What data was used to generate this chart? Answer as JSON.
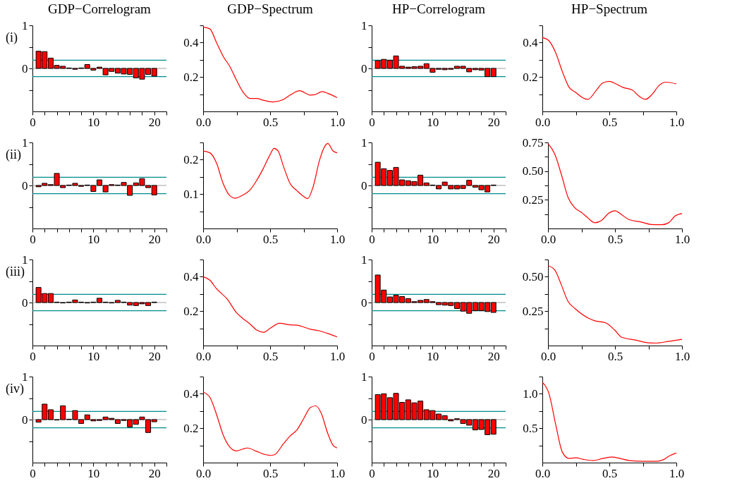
{
  "chart_data": [
    {
      "type": "bar",
      "title": "GDP−Correlogram",
      "annotations": [
        "(i)"
      ],
      "x": [
        1,
        2,
        3,
        4,
        5,
        6,
        7,
        8,
        9,
        10,
        11,
        12,
        13,
        14,
        15,
        16,
        17,
        18,
        19,
        20
      ],
      "values": [
        0.4,
        0.39,
        0.24,
        0.07,
        0.05,
        0.01,
        -0.02,
        0.01,
        0.09,
        -0.04,
        0.03,
        -0.15,
        -0.07,
        -0.11,
        -0.13,
        -0.14,
        -0.22,
        -0.25,
        -0.14,
        -0.18
      ],
      "color": "#ff0000",
      "xlim": [
        0,
        22
      ],
      "xticks": [
        0,
        {
          "value": 2,
          "label": null
        },
        {
          "value": 4,
          "label": null
        },
        {
          "value": 6,
          "label": null
        },
        {
          "value": 8,
          "label": null
        },
        10,
        {
          "value": 12,
          "label": null
        },
        {
          "value": 14,
          "label": null
        },
        {
          "value": 16,
          "label": null
        },
        {
          "value": 18,
          "label": null
        },
        20,
        {
          "value": 22,
          "label": null
        }
      ],
      "ylim": [
        -1,
        1
      ],
      "yticks": [
        {
          "value": -0.5,
          "label": null
        },
        0,
        {
          "value": 0.5,
          "label": null
        },
        1
      ],
      "ref_lines": [
        {
          "axis": "y",
          "value": 0,
          "color": "#a0a0a0"
        },
        {
          "axis": "y",
          "value": 0.19,
          "color": "#008b8b"
        },
        {
          "axis": "y",
          "value": -0.19,
          "color": "#008b8b"
        }
      ]
    },
    {
      "type": "line",
      "title": "GDP−Spectrum",
      "x": [
        0,
        0.05,
        0.1,
        0.15,
        0.2,
        0.25,
        0.3,
        0.35,
        0.4,
        0.45,
        0.52,
        0.6,
        0.65,
        0.72,
        0.8,
        0.83,
        0.89,
        0.93,
        1.0
      ],
      "values": [
        0.49,
        0.48,
        0.4,
        0.32,
        0.26,
        0.18,
        0.11,
        0.075,
        0.075,
        0.065,
        0.055,
        0.07,
        0.095,
        0.12,
        0.095,
        0.097,
        0.115,
        0.105,
        0.08
      ],
      "color": "#ff0000",
      "xlim": [
        0,
        1
      ],
      "xticks": [
        {
          "value": 0,
          "label": "0.0"
        },
        {
          "value": 0.25,
          "label": null
        },
        0.5,
        {
          "value": 0.75,
          "label": null
        },
        {
          "value": 1,
          "label": "1.0"
        }
      ],
      "ylim": [
        0,
        0.5
      ],
      "yticks": [
        {
          "value": 0.1,
          "label": null
        },
        0.2,
        {
          "value": 0.3,
          "label": null
        },
        0.4,
        {
          "value": 0.5,
          "label": null
        }
      ]
    },
    {
      "type": "bar",
      "title": "HP−Correlogram",
      "x": [
        1,
        2,
        3,
        4,
        5,
        6,
        7,
        8,
        9,
        10,
        11,
        12,
        13,
        14,
        15,
        16,
        17,
        18,
        19,
        20
      ],
      "values": [
        0.18,
        0.21,
        0.19,
        0.29,
        0.05,
        0.03,
        0.04,
        0.05,
        0.11,
        -0.09,
        -0.02,
        -0.03,
        -0.02,
        0.05,
        0.05,
        -0.08,
        -0.03,
        -0.04,
        -0.19,
        -0.19
      ],
      "color": "#ff0000",
      "xlim": [
        0,
        22
      ],
      "xticks": [
        0,
        {
          "value": 2,
          "label": null
        },
        {
          "value": 4,
          "label": null
        },
        {
          "value": 6,
          "label": null
        },
        {
          "value": 8,
          "label": null
        },
        10,
        {
          "value": 12,
          "label": null
        },
        {
          "value": 14,
          "label": null
        },
        {
          "value": 16,
          "label": null
        },
        {
          "value": 18,
          "label": null
        },
        20,
        {
          "value": 22,
          "label": null
        }
      ],
      "ylim": [
        -1,
        1
      ],
      "yticks": [
        {
          "value": -0.5,
          "label": null
        },
        0,
        {
          "value": 0.5,
          "label": null
        },
        1
      ],
      "ref_lines": [
        {
          "axis": "y",
          "value": 0,
          "color": "#a0a0a0"
        },
        {
          "axis": "y",
          "value": 0.19,
          "color": "#008b8b"
        },
        {
          "axis": "y",
          "value": -0.19,
          "color": "#008b8b"
        }
      ]
    },
    {
      "type": "line",
      "title": "HP−Spectrum",
      "x": [
        0,
        0.05,
        0.1,
        0.15,
        0.2,
        0.25,
        0.3,
        0.34,
        0.4,
        0.45,
        0.5,
        0.55,
        0.6,
        0.67,
        0.72,
        0.77,
        0.82,
        0.87,
        0.92,
        1.0
      ],
      "values": [
        0.43,
        0.41,
        0.34,
        0.23,
        0.14,
        0.11,
        0.08,
        0.07,
        0.12,
        0.165,
        0.175,
        0.16,
        0.14,
        0.125,
        0.09,
        0.07,
        0.1,
        0.15,
        0.17,
        0.16
      ],
      "color": "#ff0000",
      "xlim": [
        0,
        1
      ],
      "xticks": [
        {
          "value": 0,
          "label": "0.0"
        },
        {
          "value": 0.25,
          "label": null
        },
        0.5,
        {
          "value": 0.75,
          "label": null
        },
        {
          "value": 1,
          "label": "1.0"
        }
      ],
      "ylim": [
        0,
        0.5
      ],
      "yticks": [
        {
          "value": 0.1,
          "label": null
        },
        0.2,
        {
          "value": 0.3,
          "label": null
        },
        0.4,
        {
          "value": 0.5,
          "label": null
        }
      ]
    },
    {
      "type": "bar",
      "annotations": [
        "(ii)"
      ],
      "x": [
        1,
        2,
        3,
        4,
        5,
        6,
        7,
        8,
        9,
        10,
        11,
        12,
        13,
        14,
        15,
        16,
        17,
        18,
        19,
        20
      ],
      "values": [
        -0.03,
        0.05,
        0.02,
        0.28,
        -0.05,
        0.01,
        0.05,
        -0.02,
        0.01,
        -0.14,
        0.13,
        -0.15,
        0.02,
        0.01,
        0.07,
        -0.23,
        0.06,
        0.16,
        -0.05,
        -0.22
      ],
      "color": "#ff0000",
      "xlim": [
        0,
        22
      ],
      "xticks": [
        0,
        {
          "value": 2,
          "label": null
        },
        {
          "value": 4,
          "label": null
        },
        {
          "value": 6,
          "label": null
        },
        {
          "value": 8,
          "label": null
        },
        10,
        {
          "value": 12,
          "label": null
        },
        {
          "value": 14,
          "label": null
        },
        {
          "value": 16,
          "label": null
        },
        {
          "value": 18,
          "label": null
        },
        20,
        {
          "value": 22,
          "label": null
        }
      ],
      "ylim": [
        -1,
        1
      ],
      "yticks": [
        {
          "value": -0.5,
          "label": null
        },
        0,
        {
          "value": 0.5,
          "label": null
        },
        1
      ],
      "ref_lines": [
        {
          "axis": "y",
          "value": 0,
          "color": "#a0a0a0"
        },
        {
          "axis": "y",
          "value": 0.19,
          "color": "#008b8b"
        },
        {
          "axis": "y",
          "value": -0.19,
          "color": "#008b8b"
        }
      ]
    },
    {
      "type": "line",
      "x": [
        0,
        0.05,
        0.1,
        0.15,
        0.2,
        0.24,
        0.3,
        0.35,
        0.4,
        0.45,
        0.5,
        0.53,
        0.56,
        0.6,
        0.65,
        0.7,
        0.75,
        0.78,
        0.82,
        0.87,
        0.91,
        0.93,
        0.97,
        1.0
      ],
      "values": [
        0.225,
        0.22,
        0.19,
        0.13,
        0.095,
        0.088,
        0.098,
        0.112,
        0.14,
        0.175,
        0.215,
        0.233,
        0.225,
        0.18,
        0.13,
        0.11,
        0.093,
        0.087,
        0.12,
        0.2,
        0.24,
        0.247,
        0.225,
        0.22
      ],
      "color": "#ff0000",
      "xlim": [
        0,
        1
      ],
      "xticks": [
        {
          "value": 0,
          "label": "0.0"
        },
        {
          "value": 0.25,
          "label": null
        },
        0.5,
        {
          "value": 0.75,
          "label": null
        },
        {
          "value": 1,
          "label": "1.0"
        }
      ],
      "ylim": [
        0,
        0.25
      ],
      "yticks": [
        {
          "value": 0.05,
          "label": null
        },
        0.1,
        {
          "value": 0.15,
          "label": null
        },
        0.2,
        {
          "value": 0.25,
          "label": null
        }
      ]
    },
    {
      "type": "bar",
      "x": [
        1,
        2,
        3,
        4,
        5,
        6,
        7,
        8,
        9,
        10,
        11,
        12,
        13,
        14,
        15,
        16,
        17,
        18,
        19,
        20
      ],
      "values": [
        0.54,
        0.39,
        0.35,
        0.42,
        0.13,
        0.11,
        0.09,
        0.24,
        0.06,
        0.01,
        -0.08,
        0.08,
        -0.08,
        -0.08,
        -0.07,
        0.12,
        -0.04,
        -0.1,
        -0.15,
        0.01
      ],
      "color": "#ff0000",
      "xlim": [
        0,
        22
      ],
      "xticks": [
        0,
        {
          "value": 2,
          "label": null
        },
        {
          "value": 4,
          "label": null
        },
        {
          "value": 6,
          "label": null
        },
        {
          "value": 8,
          "label": null
        },
        10,
        {
          "value": 12,
          "label": null
        },
        {
          "value": 14,
          "label": null
        },
        {
          "value": 16,
          "label": null
        },
        {
          "value": 18,
          "label": null
        },
        20,
        {
          "value": 22,
          "label": null
        }
      ],
      "ylim": [
        -1,
        1
      ],
      "yticks": [
        {
          "value": -0.5,
          "label": null
        },
        0,
        {
          "value": 0.5,
          "label": null
        },
        1
      ],
      "ref_lines": [
        {
          "axis": "y",
          "value": 0,
          "color": "#a0a0a0"
        },
        {
          "axis": "y",
          "value": 0.19,
          "color": "#008b8b"
        },
        {
          "axis": "y",
          "value": -0.19,
          "color": "#008b8b"
        }
      ]
    },
    {
      "type": "line",
      "x": [
        0,
        0.05,
        0.1,
        0.15,
        0.2,
        0.25,
        0.3,
        0.35,
        0.4,
        0.45,
        0.5,
        0.55,
        0.6,
        0.7,
        0.77,
        0.85,
        0.9,
        0.95,
        1.0
      ],
      "values": [
        0.74,
        0.65,
        0.47,
        0.27,
        0.18,
        0.14,
        0.09,
        0.05,
        0.07,
        0.13,
        0.155,
        0.12,
        0.08,
        0.055,
        0.035,
        0.033,
        0.05,
        0.11,
        0.13
      ],
      "color": "#ff0000",
      "xlim": [
        0,
        1
      ],
      "xticks": [
        {
          "value": 0,
          "label": "0.0"
        },
        {
          "value": 0.25,
          "label": null
        },
        0.5,
        {
          "value": 0.75,
          "label": null
        },
        {
          "value": 1,
          "label": "1.0"
        }
      ],
      "ylim": [
        0,
        0.75
      ],
      "yticks": [
        {
          "value": 0.125,
          "label": null
        },
        0.25,
        {
          "value": 0.375,
          "label": null
        },
        {
          "value": 0.5,
          "label": "0.50"
        },
        {
          "value": 0.625,
          "label": null
        },
        0.75
      ]
    },
    {
      "type": "bar",
      "annotations": [
        "(iii)"
      ],
      "x": [
        1,
        2,
        3,
        4,
        5,
        6,
        7,
        8,
        9,
        10,
        11,
        12,
        13,
        14,
        15,
        16,
        17,
        18,
        19,
        20
      ],
      "values": [
        0.35,
        0.21,
        0.21,
        0.01,
        -0.01,
        0.01,
        0.06,
        0.01,
        -0.01,
        0.01,
        0.1,
        0.01,
        -0.01,
        0.05,
        0.01,
        -0.06,
        -0.07,
        -0.03,
        -0.07,
        0.01
      ],
      "color": "#ff0000",
      "xlim": [
        0,
        22
      ],
      "xticks": [
        0,
        {
          "value": 2,
          "label": null
        },
        {
          "value": 4,
          "label": null
        },
        {
          "value": 6,
          "label": null
        },
        {
          "value": 8,
          "label": null
        },
        10,
        {
          "value": 12,
          "label": null
        },
        {
          "value": 14,
          "label": null
        },
        {
          "value": 16,
          "label": null
        },
        {
          "value": 18,
          "label": null
        },
        20,
        {
          "value": 22,
          "label": null
        }
      ],
      "ylim": [
        -1,
        1
      ],
      "yticks": [
        {
          "value": -0.5,
          "label": null
        },
        0,
        {
          "value": 0.5,
          "label": null
        },
        1
      ],
      "ref_lines": [
        {
          "axis": "y",
          "value": 0,
          "color": "#a0a0a0"
        },
        {
          "axis": "y",
          "value": 0.19,
          "color": "#008b8b"
        },
        {
          "axis": "y",
          "value": -0.19,
          "color": "#008b8b"
        }
      ]
    },
    {
      "type": "line",
      "x": [
        0,
        0.05,
        0.1,
        0.18,
        0.25,
        0.3,
        0.35,
        0.4,
        0.45,
        0.5,
        0.57,
        0.65,
        0.7,
        0.8,
        0.87,
        0.93,
        1.0
      ],
      "values": [
        0.4,
        0.38,
        0.33,
        0.27,
        0.19,
        0.155,
        0.125,
        0.09,
        0.077,
        0.1,
        0.13,
        0.12,
        0.118,
        0.095,
        0.085,
        0.07,
        0.05
      ],
      "color": "#ff0000",
      "xlim": [
        0,
        1
      ],
      "xticks": [
        {
          "value": 0,
          "label": "0.0"
        },
        {
          "value": 0.25,
          "label": null
        },
        0.5,
        {
          "value": 0.75,
          "label": null
        },
        {
          "value": 1,
          "label": "1.0"
        }
      ],
      "ylim": [
        0,
        0.5
      ],
      "yticks": [
        {
          "value": 0.1,
          "label": null
        },
        0.2,
        {
          "value": 0.3,
          "label": null
        },
        0.4,
        {
          "value": 0.5,
          "label": null
        }
      ]
    },
    {
      "type": "bar",
      "x": [
        1,
        2,
        3,
        4,
        5,
        6,
        7,
        8,
        9,
        10,
        11,
        12,
        13,
        14,
        15,
        16,
        17,
        18,
        19,
        20
      ],
      "values": [
        0.64,
        0.29,
        0.13,
        0.17,
        0.14,
        0.09,
        0.02,
        0.05,
        0.07,
        0.02,
        -0.05,
        -0.06,
        -0.07,
        -0.14,
        -0.2,
        -0.25,
        -0.19,
        -0.19,
        -0.21,
        -0.23
      ],
      "color": "#ff0000",
      "xlim": [
        0,
        22
      ],
      "xticks": [
        0,
        {
          "value": 2,
          "label": null
        },
        {
          "value": 4,
          "label": null
        },
        {
          "value": 6,
          "label": null
        },
        {
          "value": 8,
          "label": null
        },
        10,
        {
          "value": 12,
          "label": null
        },
        {
          "value": 14,
          "label": null
        },
        {
          "value": 16,
          "label": null
        },
        {
          "value": 18,
          "label": null
        },
        20,
        {
          "value": 22,
          "label": null
        }
      ],
      "ylim": [
        -1,
        1
      ],
      "yticks": [
        {
          "value": -0.5,
          "label": null
        },
        0,
        {
          "value": 0.5,
          "label": null
        },
        1
      ],
      "ref_lines": [
        {
          "axis": "y",
          "value": 0,
          "color": "#a0a0a0"
        },
        {
          "axis": "y",
          "value": 0.19,
          "color": "#008b8b"
        },
        {
          "axis": "y",
          "value": -0.19,
          "color": "#008b8b"
        }
      ]
    },
    {
      "type": "line",
      "x": [
        0,
        0.05,
        0.1,
        0.15,
        0.2,
        0.3,
        0.35,
        0.43,
        0.5,
        0.55,
        0.65,
        0.75,
        0.8,
        0.9,
        1.0
      ],
      "values": [
        0.58,
        0.55,
        0.44,
        0.32,
        0.27,
        0.2,
        0.18,
        0.165,
        0.11,
        0.06,
        0.04,
        0.02,
        0.018,
        0.03,
        0.045
      ],
      "color": "#ff0000",
      "xlim": [
        0,
        1
      ],
      "xticks": [
        {
          "value": 0,
          "label": "0.0"
        },
        {
          "value": 0.25,
          "label": null
        },
        0.5,
        {
          "value": 0.75,
          "label": null
        },
        {
          "value": 1,
          "label": "1.0"
        }
      ],
      "ylim": [
        0,
        0.625
      ],
      "yticks": [
        {
          "value": 0.125,
          "label": null
        },
        0.25,
        {
          "value": 0.375,
          "label": null
        },
        {
          "value": 0.5,
          "label": "0.50"
        },
        {
          "value": 0.625,
          "label": null
        }
      ]
    },
    {
      "type": "bar",
      "annotations": [
        "(iv)"
      ],
      "x": [
        1,
        2,
        3,
        4,
        5,
        6,
        7,
        8,
        9,
        10,
        11,
        12,
        13,
        14,
        15,
        16,
        17,
        18,
        19,
        20
      ],
      "values": [
        -0.06,
        0.36,
        0.23,
        -0.01,
        0.32,
        0.01,
        0.21,
        -0.09,
        0.11,
        -0.03,
        -0.02,
        0.06,
        0.03,
        -0.09,
        -0.02,
        -0.17,
        -0.11,
        0.06,
        -0.3,
        -0.05
      ],
      "color": "#ff0000",
      "xlim": [
        0,
        22
      ],
      "xticks": [
        0,
        {
          "value": 2,
          "label": null
        },
        {
          "value": 4,
          "label": null
        },
        {
          "value": 6,
          "label": null
        },
        {
          "value": 8,
          "label": null
        },
        10,
        {
          "value": 12,
          "label": null
        },
        {
          "value": 14,
          "label": null
        },
        {
          "value": 16,
          "label": null
        },
        {
          "value": 18,
          "label": null
        },
        20,
        {
          "value": 22,
          "label": null
        }
      ],
      "ylim": [
        -1,
        1
      ],
      "yticks": [
        {
          "value": -0.5,
          "label": null
        },
        0,
        {
          "value": 0.5,
          "label": null
        },
        1
      ],
      "ref_lines": [
        {
          "axis": "y",
          "value": 0,
          "color": "#a0a0a0"
        },
        {
          "axis": "y",
          "value": 0.19,
          "color": "#008b8b"
        },
        {
          "axis": "y",
          "value": -0.19,
          "color": "#008b8b"
        }
      ]
    },
    {
      "type": "line",
      "x": [
        0,
        0.05,
        0.1,
        0.15,
        0.2,
        0.25,
        0.3,
        0.33,
        0.4,
        0.45,
        0.5,
        0.53,
        0.6,
        0.65,
        0.7,
        0.75,
        0.8,
        0.84,
        0.88,
        0.93,
        0.97,
        1.0
      ],
      "values": [
        0.41,
        0.38,
        0.28,
        0.16,
        0.09,
        0.068,
        0.08,
        0.085,
        0.065,
        0.05,
        0.042,
        0.045,
        0.11,
        0.155,
        0.19,
        0.255,
        0.32,
        0.33,
        0.29,
        0.17,
        0.1,
        0.085
      ],
      "color": "#ff0000",
      "xlim": [
        0,
        1
      ],
      "xticks": [
        {
          "value": 0,
          "label": "0.0"
        },
        {
          "value": 0.25,
          "label": null
        },
        0.5,
        {
          "value": 0.75,
          "label": null
        },
        {
          "value": 1,
          "label": "1.0"
        }
      ],
      "ylim": [
        0,
        0.5
      ],
      "yticks": [
        {
          "value": 0.1,
          "label": null
        },
        0.2,
        {
          "value": 0.3,
          "label": null
        },
        0.4,
        {
          "value": 0.5,
          "label": null
        }
      ]
    },
    {
      "type": "bar",
      "x": [
        1,
        2,
        3,
        4,
        5,
        6,
        7,
        8,
        9,
        10,
        11,
        12,
        13,
        14,
        15,
        16,
        17,
        18,
        19,
        20
      ],
      "values": [
        0.58,
        0.6,
        0.51,
        0.61,
        0.4,
        0.46,
        0.39,
        0.43,
        0.23,
        0.21,
        0.13,
        0.09,
        -0.03,
        0.02,
        -0.09,
        -0.13,
        -0.24,
        -0.23,
        -0.35,
        -0.34
      ],
      "color": "#ff0000",
      "xlim": [
        0,
        22
      ],
      "xticks": [
        0,
        {
          "value": 2,
          "label": null
        },
        {
          "value": 4,
          "label": null
        },
        {
          "value": 6,
          "label": null
        },
        {
          "value": 8,
          "label": null
        },
        10,
        {
          "value": 12,
          "label": null
        },
        {
          "value": 14,
          "label": null
        },
        {
          "value": 16,
          "label": null
        },
        {
          "value": 18,
          "label": null
        },
        20,
        {
          "value": 22,
          "label": null
        }
      ],
      "ylim": [
        -1,
        1
      ],
      "yticks": [
        {
          "value": -0.5,
          "label": null
        },
        0,
        {
          "value": 0.5,
          "label": null
        },
        1
      ],
      "ref_lines": [
        {
          "axis": "y",
          "value": 0,
          "color": "#a0a0a0"
        },
        {
          "axis": "y",
          "value": 0.19,
          "color": "#008b8b"
        },
        {
          "axis": "y",
          "value": -0.19,
          "color": "#008b8b"
        }
      ]
    },
    {
      "type": "line",
      "x": [
        0,
        0.05,
        0.1,
        0.15,
        0.2,
        0.25,
        0.3,
        0.38,
        0.45,
        0.52,
        0.58,
        0.65,
        0.75,
        0.85,
        0.9,
        0.95,
        1.0
      ],
      "values": [
        1.17,
        1.0,
        0.55,
        0.15,
        0.06,
        0.07,
        0.05,
        0.03,
        0.06,
        0.08,
        0.06,
        0.03,
        0.02,
        0.02,
        0.04,
        0.1,
        0.14
      ],
      "color": "#ff0000",
      "xlim": [
        0,
        1
      ],
      "xticks": [
        {
          "value": 0,
          "label": "0.0"
        },
        {
          "value": 0.25,
          "label": null
        },
        0.5,
        {
          "value": 0.75,
          "label": null
        },
        {
          "value": 1,
          "label": "1.0"
        }
      ],
      "ylim": [
        0,
        1.25
      ],
      "yticks": [
        {
          "value": 0.25,
          "label": null
        },
        0.5,
        {
          "value": 0.75,
          "label": null
        },
        {
          "value": 1,
          "label": "1.0"
        },
        {
          "value": 1.25,
          "label": null
        }
      ]
    }
  ]
}
